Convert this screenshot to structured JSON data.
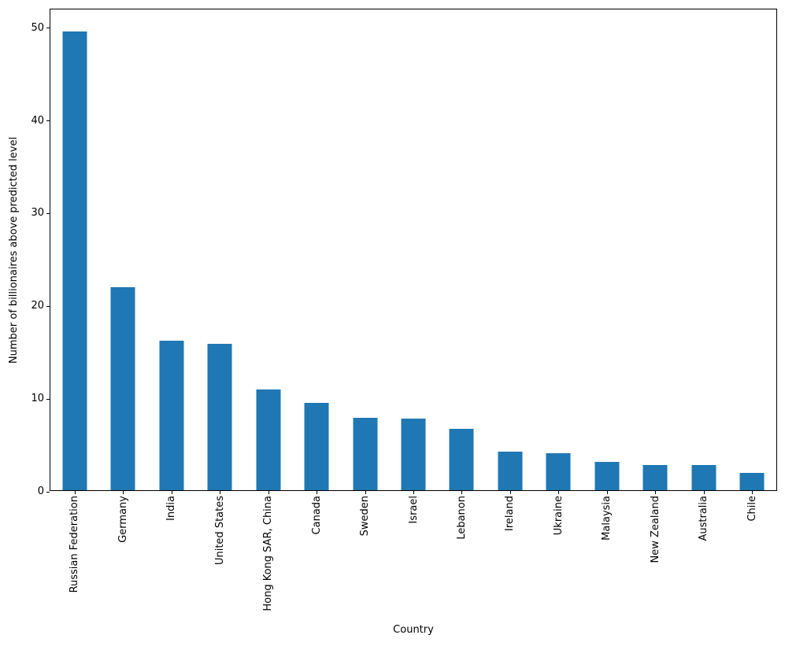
{
  "chart_data": {
    "type": "bar",
    "title": "",
    "xlabel": "Country",
    "ylabel": "Number of billionaires above predicted level",
    "categories": [
      "Russian Federation",
      "Germany",
      "India",
      "United States",
      "Hong Kong SAR, China",
      "Canada",
      "Sweden",
      "Israel",
      "Lebanon",
      "Ireland",
      "Ukraine",
      "Malaysia",
      "New Zealand",
      "Australia",
      "Chile"
    ],
    "values": [
      49.5,
      21.9,
      16.1,
      15.8,
      10.9,
      9.4,
      7.8,
      7.7,
      6.6,
      4.2,
      4.0,
      3.1,
      2.7,
      2.7,
      1.9
    ],
    "ylim": [
      0,
      52
    ],
    "yticks": [
      0,
      10,
      20,
      30,
      40,
      50
    ],
    "bar_color": "#1f77b4",
    "axis_color": "#000000",
    "grid": false,
    "legend_position": "none"
  }
}
